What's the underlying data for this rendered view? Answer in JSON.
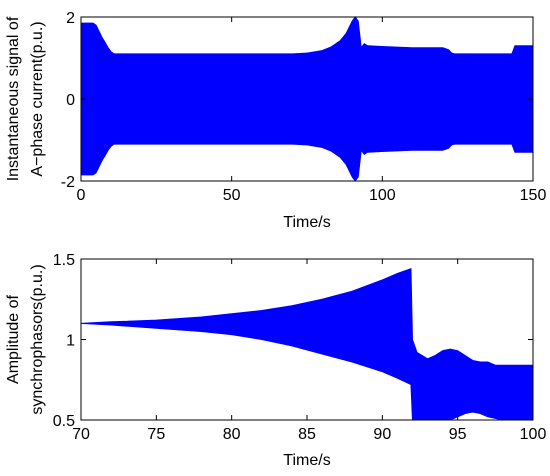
{
  "chart_data": [
    {
      "type": "line",
      "xlabel": "Time/s",
      "ylabel_lines": [
        "Instantaneous signal of",
        "A−phase current(p.u.)"
      ],
      "xlim": [
        0,
        150
      ],
      "ylim": [
        -2,
        2
      ],
      "xticks": [
        0,
        50,
        100,
        150
      ],
      "yticks": [
        -2,
        0,
        2
      ],
      "series_color": "#0000ff",
      "series": [
        {
          "envelope": {
            "t": [
              0,
              1,
              2,
              3,
              4,
              5,
              6,
              7,
              8,
              9,
              10,
              11,
              20,
              30,
              40,
              50,
              60,
              70,
              75,
              80,
              83,
              86,
              88,
              89,
              90,
              91,
              92,
              93,
              94,
              95,
              100,
              110,
              120,
              122,
              123,
              124,
              130,
              140,
              143,
              144,
              150
            ],
            "amplitude": [
              1.85,
              1.85,
              1.85,
              1.85,
              1.85,
              1.8,
              1.65,
              1.5,
              1.38,
              1.25,
              1.15,
              1.1,
              1.1,
              1.1,
              1.1,
              1.1,
              1.1,
              1.1,
              1.12,
              1.18,
              1.27,
              1.42,
              1.6,
              1.75,
              1.9,
              2.0,
              1.9,
              1.25,
              1.35,
              1.3,
              1.28,
              1.25,
              1.25,
              1.2,
              1.12,
              1.1,
              1.1,
              1.1,
              1.1,
              1.3,
              1.3
            ]
          }
        }
      ]
    },
    {
      "type": "line",
      "xlabel": "Time/s",
      "ylabel_lines": [
        "Amplitude of",
        "synchrophasors(p.u.)"
      ],
      "xlim": [
        70,
        100
      ],
      "ylim": [
        0.5,
        1.5
      ],
      "xticks": [
        70,
        75,
        80,
        85,
        90,
        95,
        100
      ],
      "yticks": [
        0.5,
        1,
        1.5
      ],
      "series_color": "#0000ff",
      "series": [
        {
          "band": {
            "t": [
              70,
              72,
              75,
              78,
              80,
              82,
              84,
              86,
              88,
              90,
              91,
              91.9,
              92,
              92.3,
              93,
              93.5,
              94,
              94.5,
              95,
              95.5,
              96,
              96.5,
              97,
              97.5,
              98,
              99,
              100
            ],
            "upper": [
              1.1,
              1.11,
              1.12,
              1.14,
              1.16,
              1.18,
              1.21,
              1.25,
              1.3,
              1.37,
              1.41,
              1.44,
              1.0,
              0.92,
              0.88,
              0.9,
              0.93,
              0.94,
              0.93,
              0.9,
              0.87,
              0.86,
              0.86,
              0.84,
              0.84,
              0.84,
              0.84
            ],
            "lower": [
              1.1,
              1.09,
              1.07,
              1.05,
              1.03,
              1.0,
              0.96,
              0.91,
              0.86,
              0.8,
              0.76,
              0.72,
              0.5,
              0.5,
              0.5,
              0.5,
              0.5,
              0.5,
              0.52,
              0.54,
              0.55,
              0.54,
              0.52,
              0.51,
              0.5,
              0.5,
              0.5
            ]
          }
        }
      ]
    }
  ]
}
